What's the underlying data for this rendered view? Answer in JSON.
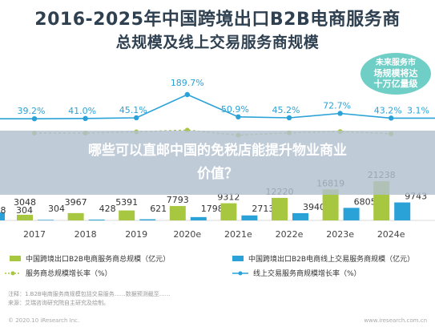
{
  "chart_data": {
    "type": "bar",
    "title": "2016-2025年中国跨境出口B2B电商服务商",
    "subtitle": "总规模及线上交易服务商规模",
    "callout": [
      "未来服务市",
      "场规模将达",
      "十万亿量级"
    ],
    "categories": [
      "2017",
      "2018",
      "2019",
      "2020e",
      "2021e",
      "2022e",
      "2023e",
      "2024e"
    ],
    "partial_left": {
      "total_label": "8",
      "online_label": "304"
    },
    "series": [
      {
        "name": "中国跨境出口B2B电商服务商总规模（亿元）",
        "kind": "bar",
        "color": "#a6c73f",
        "values": [
          3048,
          3967,
          5391,
          7793,
          9312,
          12220,
          16819,
          21238
        ],
        "labels": [
          "3048",
          "3967",
          "5391",
          "7793",
          "9312",
          "12220",
          "16819",
          "21238"
        ]
      },
      {
        "name": "中国跨境出口B2B电商线上交易服务商规模（亿元）",
        "kind": "bar",
        "color": "#2aa2d8",
        "values": [
          304,
          428,
          621,
          1798,
          2713,
          3940,
          6805,
          9743
        ],
        "labels": [
          "304",
          "428",
          "621",
          "1798",
          "2713",
          "3940",
          "6805",
          "9743"
        ]
      },
      {
        "name": "服务商总规模增长率（%）",
        "kind": "line",
        "color": "#a6c73f",
        "values": [
          30.2,
          30.1,
          35.9,
          44.6,
          19.5,
          31.2,
          37.6,
          26.3
        ],
        "labels": []
      },
      {
        "name": "线上交易服务商规模增长率（%）",
        "kind": "line",
        "color": "#2aa2d8",
        "values": [
          39.2,
          41.0,
          45.1,
          189.7,
          50.9,
          45.2,
          72.7,
          43.2
        ],
        "labels": [
          "39.2%",
          "41.0%",
          "45.1%",
          "189.7%",
          "50.9%",
          "45.2%",
          "72.7%",
          "43.2%"
        ],
        "partial_right_label": "3.1%"
      }
    ]
  },
  "overlay": {
    "line1": "哪些可以直邮中国的免税店能提升物业商业",
    "line2": "价值？"
  },
  "footnote": {
    "line1": "注释：1.B2B电商服务商规模包括交易服务……数据预测截至……",
    "line2": "来源：艾瑞咨询研究院自主研究及绘制。"
  },
  "brand": {
    "left": "© 2020.10 iResearch Inc.",
    "right": "www.iresearch.com.cn"
  }
}
